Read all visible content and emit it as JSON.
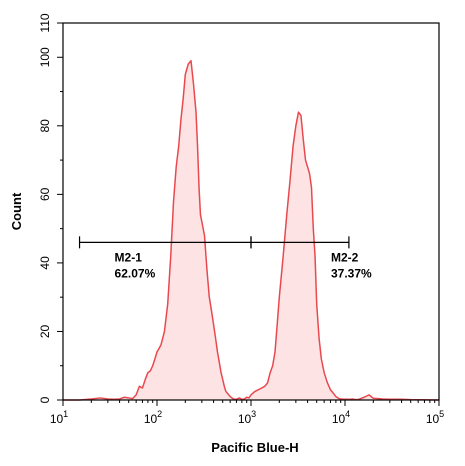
{
  "chart_data": {
    "type": "area",
    "xlabel": "Pacific Blue-H",
    "ylabel": "Count",
    "x_scale": "log",
    "xlim": [
      10,
      100000
    ],
    "ylim": [
      0,
      110
    ],
    "x_ticks": [
      {
        "value": 10,
        "base": "10",
        "exp": "1"
      },
      {
        "value": 100,
        "base": "10",
        "exp": "2"
      },
      {
        "value": 1000,
        "base": "10",
        "exp": "3"
      },
      {
        "value": 10000,
        "base": "10",
        "exp": "4"
      },
      {
        "value": 100000,
        "base": "10",
        "exp": "5"
      }
    ],
    "y_ticks": [
      0,
      20,
      40,
      60,
      80,
      100,
      110
    ],
    "series_color": "#e8494f",
    "fill_color": "#fde3e3",
    "series": [
      {
        "x": [
          10,
          15,
          20,
          25,
          30,
          35,
          40,
          45,
          50,
          55,
          60,
          65,
          70,
          75,
          80,
          85,
          90,
          95,
          100,
          110,
          120,
          130,
          140,
          150,
          160,
          170,
          180,
          190,
          200,
          215,
          230,
          245,
          260,
          270,
          280,
          290,
          300,
          320,
          340,
          360,
          380,
          400,
          420,
          440,
          460,
          480,
          500,
          520,
          540,
          560,
          600,
          650,
          700,
          750,
          800,
          850,
          900,
          950,
          1000,
          1100,
          1200,
          1300,
          1400,
          1500,
          1600,
          1700,
          1800,
          1900,
          2000,
          2200,
          2400,
          2600,
          2800,
          3000,
          3200,
          3400,
          3600,
          3800,
          4000,
          4200,
          4400,
          4600,
          4800,
          5000,
          5300,
          5600,
          6000,
          6500,
          7000,
          7500,
          8000,
          8500,
          9000,
          10000,
          11000,
          12000,
          13000,
          14000,
          16000,
          18000,
          20000,
          25000,
          30000,
          40000,
          50000,
          100000
        ],
        "y": [
          0,
          0,
          0.3,
          0.6,
          0.3,
          0.2,
          0.3,
          0.8,
          0.6,
          0.4,
          1.5,
          4,
          3.5,
          6,
          8,
          8.5,
          10,
          12,
          14,
          16,
          20,
          28,
          42,
          58,
          68,
          74,
          82,
          88,
          95,
          98,
          99,
          92,
          84,
          74,
          62,
          54,
          52,
          48,
          38,
          30,
          26,
          22,
          18,
          14,
          11,
          8,
          6,
          4,
          2.5,
          2,
          1,
          0.3,
          0.2,
          0.6,
          0.2,
          0.3,
          0.8,
          0.6,
          1.5,
          2.5,
          3,
          3.5,
          4,
          5,
          8,
          10,
          14,
          22,
          30,
          42,
          54,
          64,
          74,
          80,
          84,
          83,
          76,
          70,
          68,
          66,
          62,
          50,
          42,
          28,
          18,
          12,
          8,
          5,
          3,
          2,
          1,
          0.5,
          0.3,
          0.2,
          0.2,
          0.3,
          0.1,
          0.2,
          0.8,
          1.5,
          0.5,
          0.3,
          0.2,
          0.2,
          0.1,
          0
        ]
      }
    ],
    "gates": [
      {
        "name": "M2-1",
        "percent": "62.07%",
        "x_start": 15,
        "x_end": 1000,
        "y": 46
      },
      {
        "name": "M2-2",
        "percent": "37.37%",
        "x_start": 1000,
        "x_end": 11000,
        "y": 46
      }
    ]
  }
}
